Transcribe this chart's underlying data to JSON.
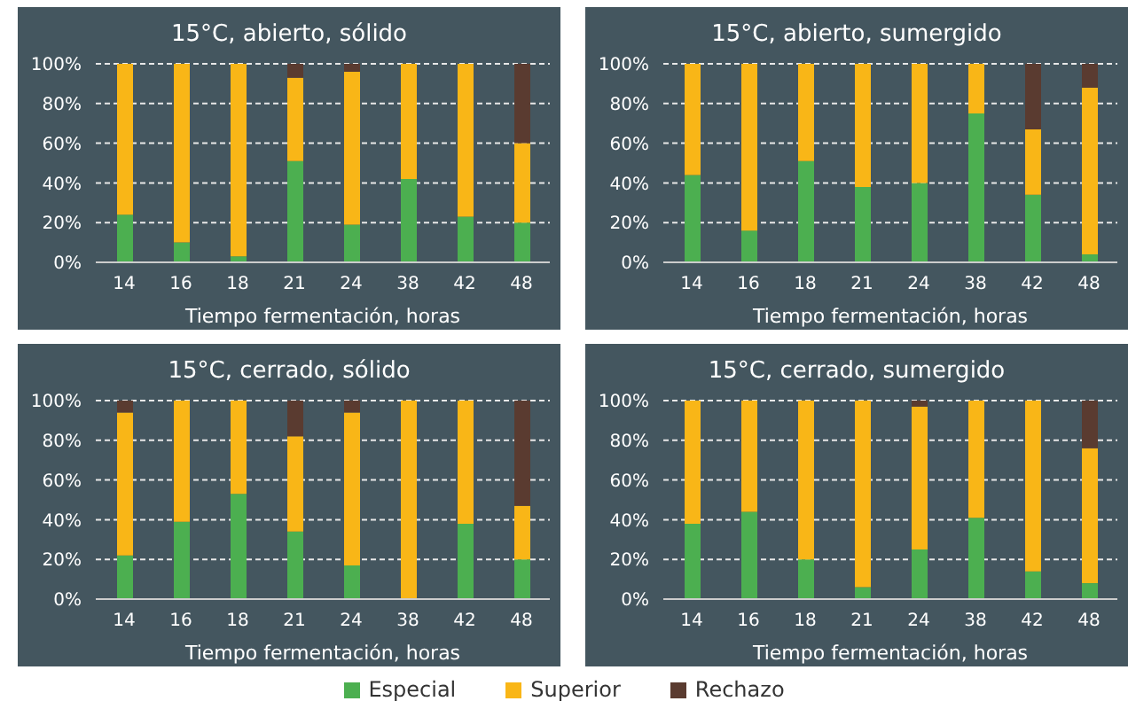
{
  "chart_data": [
    {
      "type": "bar",
      "title": "15°C, abierto, sólido",
      "xlabel": "Tiempo fermentación, horas",
      "categories": [
        "14",
        "16",
        "18",
        "21",
        "24",
        "38",
        "42",
        "48"
      ],
      "stacked": true,
      "grid": "y",
      "legend": "bottom",
      "ylim": [
        0,
        100
      ],
      "yticks": [
        {
          "value": 0,
          "label": "0%"
        },
        {
          "value": 20,
          "label": "20%"
        },
        {
          "value": 40,
          "label": "40%"
        },
        {
          "value": 60,
          "label": "60%"
        },
        {
          "value": 80,
          "label": "80%"
        },
        {
          "value": 100,
          "label": "100%"
        }
      ],
      "series": [
        {
          "name": "Especial",
          "color": "#4caf50",
          "values": [
            24,
            10,
            3,
            51,
            19,
            42,
            23,
            20
          ]
        },
        {
          "name": "Superior",
          "color": "#f9b617",
          "values": [
            76,
            90,
            97,
            42,
            77,
            58,
            77,
            40
          ]
        },
        {
          "name": "Rechazo",
          "color": "#5a3b30",
          "values": [
            0,
            0,
            0,
            7,
            4,
            0,
            0,
            40
          ]
        }
      ]
    },
    {
      "type": "bar",
      "title": "15°C, abierto, sumergido",
      "xlabel": "Tiempo fermentación, horas",
      "categories": [
        "14",
        "16",
        "18",
        "21",
        "24",
        "38",
        "42",
        "48"
      ],
      "stacked": true,
      "grid": "y",
      "ylim": [
        0,
        100
      ],
      "yticks": [
        {
          "value": 0,
          "label": "0%"
        },
        {
          "value": 20,
          "label": "20%"
        },
        {
          "value": 40,
          "label": "40%"
        },
        {
          "value": 60,
          "label": "60%"
        },
        {
          "value": 80,
          "label": "80%"
        },
        {
          "value": 100,
          "label": "100%"
        }
      ],
      "series": [
        {
          "color": "#4caf50",
          "values": [
            44,
            16,
            51,
            38,
            40,
            75,
            34,
            4
          ]
        },
        {
          "color": "#f9b617",
          "values": [
            56,
            84,
            49,
            62,
            60,
            25,
            33,
            84
          ]
        },
        {
          "color": "#5a3b30",
          "values": [
            0,
            0,
            0,
            0,
            0,
            0,
            33,
            12
          ]
        }
      ]
    },
    {
      "type": "bar",
      "title": "15°C, cerrado, sólido",
      "xlabel": "Tiempo fermentación, horas",
      "categories": [
        "14",
        "16",
        "18",
        "21",
        "24",
        "38",
        "42",
        "48"
      ],
      "stacked": true,
      "grid": "y",
      "ylim": [
        0,
        100
      ],
      "yticks": [
        {
          "value": 0,
          "label": "0%"
        },
        {
          "value": 20,
          "label": "20%"
        },
        {
          "value": 40,
          "label": "40%"
        },
        {
          "value": 60,
          "label": "60%"
        },
        {
          "value": 80,
          "label": "80%"
        },
        {
          "value": 100,
          "label": "100%"
        }
      ],
      "series": [
        {
          "color": "#4caf50",
          "values": [
            22,
            39,
            53,
            34,
            17,
            0,
            38,
            20
          ]
        },
        {
          "color": "#f9b617",
          "values": [
            72,
            61,
            47,
            48,
            77,
            100,
            62,
            27
          ]
        },
        {
          "color": "#5a3b30",
          "values": [
            6,
            0,
            0,
            18,
            6,
            0,
            0,
            53
          ]
        }
      ]
    },
    {
      "type": "bar",
      "title": "15°C, cerrado, sumergido",
      "xlabel": "Tiempo fermentación, horas",
      "categories": [
        "14",
        "16",
        "18",
        "21",
        "24",
        "38",
        "42",
        "48"
      ],
      "stacked": true,
      "grid": "y",
      "ylim": [
        0,
        100
      ],
      "yticks": [
        {
          "value": 0,
          "label": "0%"
        },
        {
          "value": 20,
          "label": "20%"
        },
        {
          "value": 40,
          "label": "40%"
        },
        {
          "value": 60,
          "label": "60%"
        },
        {
          "value": 80,
          "label": "80%"
        },
        {
          "value": 100,
          "label": "100%"
        }
      ],
      "series": [
        {
          "color": "#4caf50",
          "values": [
            38,
            44,
            20,
            6,
            25,
            41,
            14,
            8
          ]
        },
        {
          "color": "#f9b617",
          "values": [
            62,
            56,
            80,
            94,
            72,
            59,
            86,
            68
          ]
        },
        {
          "color": "#5a3b30",
          "values": [
            0,
            0,
            0,
            0,
            3,
            0,
            0,
            24
          ]
        }
      ]
    }
  ]
}
